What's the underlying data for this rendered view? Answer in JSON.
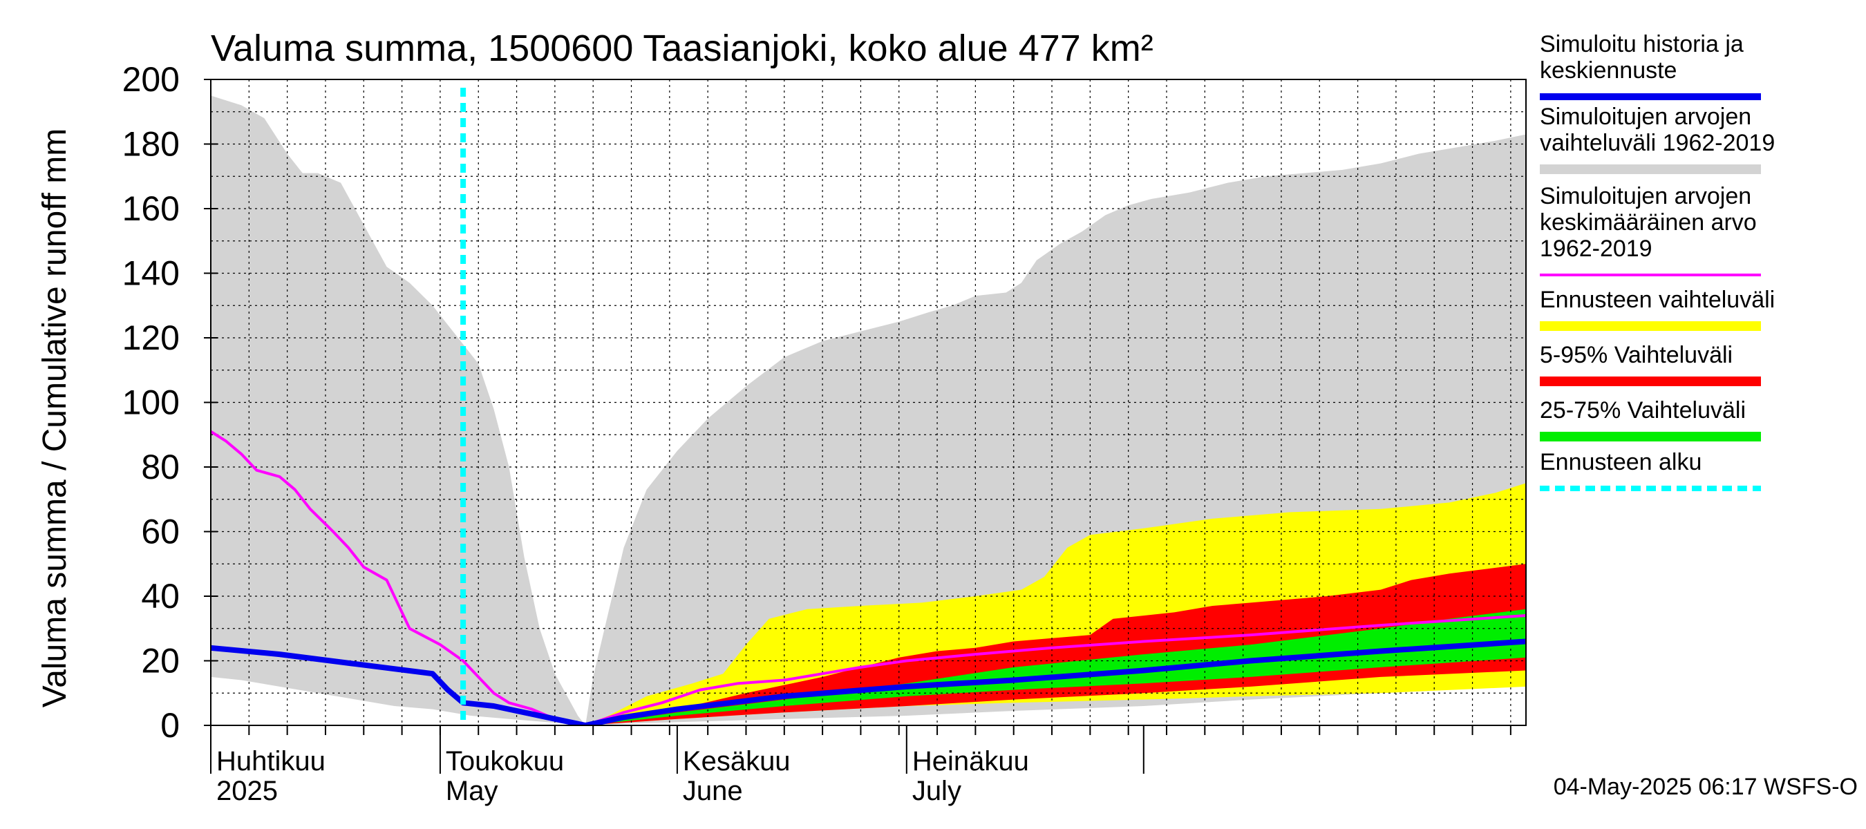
{
  "chart_data": {
    "type": "area",
    "title": "Valuma summa, 1500600 Taasianjoki, koko alue 477 km²",
    "ylabel": "Valuma summa / Cumulative runoff    mm",
    "ylim": [
      0,
      200
    ],
    "yticks": [
      0,
      20,
      40,
      60,
      80,
      100,
      120,
      140,
      160,
      180,
      200
    ],
    "xlim": [
      "2025-04-01",
      "2025-07-31"
    ],
    "grid": true,
    "legend_position": "right",
    "month_labels": [
      {
        "date": "2025-04-01",
        "line1": "Huhtikuu",
        "line2": "2025"
      },
      {
        "date": "2025-05-01",
        "line1": "Toukokuu",
        "line2": "May"
      },
      {
        "date": "2025-06-01",
        "line1": "Kesäkuu",
        "line2": "June"
      },
      {
        "date": "2025-07-01",
        "line1": "Heinäkuu",
        "line2": "July"
      }
    ],
    "forecast_start": "2025-05-04",
    "timestamp": "04-May-2025 06:17 WSFS-O",
    "colors": {
      "history": "#0000ee",
      "sim_range": "#d3d3d3",
      "sim_mean": "#ff00ff",
      "forecast_range": "#ffff00",
      "p5_95": "#ff0000",
      "p25_75": "#00ee00",
      "forecast_start": "#00ffff"
    },
    "legend": [
      {
        "key": "history",
        "label": "Simuloitu historia ja keskiennuste",
        "lines": [
          "Simuloitu historia ja",
          "keskiennuste"
        ]
      },
      {
        "key": "sim_range",
        "label": "Simuloitujen arvojen vaihteluväli 1962-2019",
        "lines": [
          "Simuloitujen arvojen",
          "vaihteluväli 1962-2019"
        ]
      },
      {
        "key": "sim_mean",
        "label": "Simuloitujen arvojen keskimääräinen arvo 1962-2019",
        "lines": [
          "Simuloitujen arvojen",
          "keskimääräinen arvo",
          "   1962-2019"
        ]
      },
      {
        "key": "forecast_range",
        "label": "Ennusteen vaihteluväli",
        "lines": [
          "Ennusteen vaihteluväli"
        ]
      },
      {
        "key": "p5_95",
        "label": "5-95% Vaihteluväli",
        "lines": [
          "5-95% Vaihteluväli"
        ]
      },
      {
        "key": "p25_75",
        "label": "25-75% Vaihteluväli",
        "lines": [
          "25-75% Vaihteluväli"
        ]
      },
      {
        "key": "forecast_start",
        "label": "Ennusteen alku",
        "lines": [
          "Ennusteen alku"
        ]
      }
    ],
    "series": {
      "sim_range": {
        "name": "Simuloitujen arvojen vaihteluväli 1962-2019",
        "upper": [
          [
            "2025-04-01",
            195
          ],
          [
            "2025-04-05",
            192
          ],
          [
            "2025-04-08",
            188
          ],
          [
            "2025-04-11",
            177
          ],
          [
            "2025-04-13",
            171
          ],
          [
            "2025-04-15",
            171
          ],
          [
            "2025-04-18",
            168
          ],
          [
            "2025-04-21",
            155
          ],
          [
            "2025-04-24",
            142
          ],
          [
            "2025-04-27",
            137
          ],
          [
            "2025-04-30",
            130
          ],
          [
            "2025-05-03",
            121
          ],
          [
            "2025-05-06",
            112
          ],
          [
            "2025-05-08",
            98
          ],
          [
            "2025-05-10",
            80
          ],
          [
            "2025-05-12",
            52
          ],
          [
            "2025-05-14",
            30
          ],
          [
            "2025-05-16",
            16
          ],
          [
            "2025-05-19",
            3
          ],
          [
            "2025-05-20",
            0
          ],
          [
            "2025-05-21",
            15
          ],
          [
            "2025-05-23",
            35
          ],
          [
            "2025-05-25",
            55
          ],
          [
            "2025-05-28",
            73
          ],
          [
            "2025-06-01",
            85
          ],
          [
            "2025-06-05",
            95
          ],
          [
            "2025-06-10",
            105
          ],
          [
            "2025-06-15",
            114
          ],
          [
            "2025-06-20",
            119
          ],
          [
            "2025-06-25",
            122
          ],
          [
            "2025-06-30",
            125
          ],
          [
            "2025-07-04",
            128
          ],
          [
            "2025-07-07",
            130
          ],
          [
            "2025-07-10",
            133
          ],
          [
            "2025-07-14",
            134
          ],
          [
            "2025-07-16",
            137
          ],
          [
            "2025-07-18",
            144
          ],
          [
            "2025-07-21",
            149
          ],
          [
            "2025-07-24",
            153
          ],
          [
            "2025-07-27",
            158
          ],
          [
            "2025-07-30",
            161
          ],
          [
            "2025-08-02",
            163
          ],
          [
            "2025-08-07",
            165
          ],
          [
            "2025-08-12",
            168
          ],
          [
            "2025-08-17",
            170
          ],
          [
            "2025-08-22",
            171
          ],
          [
            "2025-08-27",
            172
          ],
          [
            "2025-09-01",
            174
          ],
          [
            "2025-09-06",
            177
          ],
          [
            "2025-09-11",
            179
          ],
          [
            "2025-09-16",
            181
          ],
          [
            "2025-09-20",
            183
          ]
        ],
        "lower": [
          [
            "2025-04-01",
            15
          ],
          [
            "2025-04-05",
            14
          ],
          [
            "2025-04-10",
            12
          ],
          [
            "2025-04-15",
            10
          ],
          [
            "2025-04-20",
            8
          ],
          [
            "2025-04-25",
            6
          ],
          [
            "2025-04-30",
            5
          ],
          [
            "2025-05-05",
            3
          ],
          [
            "2025-05-10",
            2
          ],
          [
            "2025-05-15",
            1
          ],
          [
            "2025-05-20",
            0
          ],
          [
            "2025-05-25",
            0.5
          ],
          [
            "2025-06-01",
            1
          ],
          [
            "2025-06-15",
            2
          ],
          [
            "2025-07-01",
            3
          ],
          [
            "2025-07-15",
            4.5
          ],
          [
            "2025-08-01",
            6
          ],
          [
            "2025-08-15",
            8
          ],
          [
            "2025-09-01",
            10
          ],
          [
            "2025-09-20",
            13
          ]
        ]
      },
      "forecast_range": {
        "name": "Ennusteen vaihteluväli",
        "upper": [
          [
            "2025-05-20",
            0
          ],
          [
            "2025-05-23",
            3
          ],
          [
            "2025-05-28",
            9
          ],
          [
            "2025-06-03",
            13
          ],
          [
            "2025-06-07",
            16
          ],
          [
            "2025-06-10",
            25
          ],
          [
            "2025-06-13",
            33
          ],
          [
            "2025-06-18",
            36
          ],
          [
            "2025-06-25",
            37
          ],
          [
            "2025-07-03",
            38
          ],
          [
            "2025-07-10",
            40
          ],
          [
            "2025-07-16",
            42
          ],
          [
            "2025-07-19",
            46
          ],
          [
            "2025-07-22",
            55
          ],
          [
            "2025-07-25",
            59
          ],
          [
            "2025-08-01",
            61
          ],
          [
            "2025-08-10",
            64
          ],
          [
            "2025-08-20",
            66
          ],
          [
            "2025-09-01",
            67
          ],
          [
            "2025-09-10",
            69
          ],
          [
            "2025-09-16",
            72
          ],
          [
            "2025-09-20",
            75
          ]
        ],
        "lower": [
          [
            "2025-05-20",
            0
          ],
          [
            "2025-06-01",
            2
          ],
          [
            "2025-06-15",
            4
          ],
          [
            "2025-07-01",
            6
          ],
          [
            "2025-07-15",
            7
          ],
          [
            "2025-08-01",
            8
          ],
          [
            "2025-08-15",
            9
          ],
          [
            "2025-09-01",
            10
          ],
          [
            "2025-09-20",
            12
          ]
        ]
      },
      "p5_95": {
        "name": "5-95% Vaihteluväli",
        "upper": [
          [
            "2025-05-20",
            0
          ],
          [
            "2025-06-01",
            5
          ],
          [
            "2025-06-10",
            10
          ],
          [
            "2025-06-20",
            15
          ],
          [
            "2025-06-25",
            18
          ],
          [
            "2025-06-30",
            21
          ],
          [
            "2025-07-05",
            23
          ],
          [
            "2025-07-10",
            24
          ],
          [
            "2025-07-15",
            26
          ],
          [
            "2025-07-25",
            28
          ],
          [
            "2025-07-28",
            33
          ],
          [
            "2025-08-05",
            35
          ],
          [
            "2025-08-10",
            37
          ],
          [
            "2025-08-15",
            38
          ],
          [
            "2025-08-25",
            40
          ],
          [
            "2025-09-01",
            42
          ],
          [
            "2025-09-05",
            45
          ],
          [
            "2025-09-10",
            47
          ],
          [
            "2025-09-20",
            50
          ]
        ],
        "lower": [
          [
            "2025-05-20",
            0
          ],
          [
            "2025-06-01",
            2
          ],
          [
            "2025-06-15",
            4
          ],
          [
            "2025-07-01",
            6
          ],
          [
            "2025-07-15",
            8
          ],
          [
            "2025-08-01",
            10
          ],
          [
            "2025-08-15",
            12
          ],
          [
            "2025-09-01",
            15
          ],
          [
            "2025-09-20",
            17
          ]
        ]
      },
      "p25_75": {
        "name": "25-75% Vaihteluväli",
        "upper": [
          [
            "2025-05-20",
            0
          ],
          [
            "2025-06-01",
            4
          ],
          [
            "2025-06-15",
            8
          ],
          [
            "2025-07-01",
            13
          ],
          [
            "2025-07-15",
            18
          ],
          [
            "2025-08-01",
            22
          ],
          [
            "2025-08-15",
            25
          ],
          [
            "2025-09-01",
            30
          ],
          [
            "2025-09-10",
            33
          ],
          [
            "2025-09-20",
            36
          ]
        ],
        "lower": [
          [
            "2025-05-20",
            0
          ],
          [
            "2025-06-01",
            3
          ],
          [
            "2025-06-15",
            6
          ],
          [
            "2025-07-01",
            9
          ],
          [
            "2025-07-15",
            11
          ],
          [
            "2025-08-01",
            13
          ],
          [
            "2025-08-15",
            15
          ],
          [
            "2025-09-01",
            18
          ],
          [
            "2025-09-20",
            21
          ]
        ]
      },
      "sim_mean": {
        "name": "Simuloitujen arvojen keskimääräinen arvo 1962-2019",
        "values": [
          [
            "2025-04-01",
            91
          ],
          [
            "2025-04-03",
            88
          ],
          [
            "2025-04-05",
            84
          ],
          [
            "2025-04-07",
            79
          ],
          [
            "2025-04-10",
            77
          ],
          [
            "2025-04-12",
            73
          ],
          [
            "2025-04-14",
            67
          ],
          [
            "2025-04-17",
            60
          ],
          [
            "2025-04-19",
            55
          ],
          [
            "2025-04-21",
            49
          ],
          [
            "2025-04-24",
            45
          ],
          [
            "2025-04-27",
            30
          ],
          [
            "2025-05-01",
            25
          ],
          [
            "2025-05-04",
            20
          ],
          [
            "2025-05-06",
            15
          ],
          [
            "2025-05-08",
            10
          ],
          [
            "2025-05-10",
            7
          ],
          [
            "2025-05-13",
            5
          ],
          [
            "2025-05-15",
            3
          ],
          [
            "2025-05-17",
            1.5
          ],
          [
            "2025-05-20",
            0
          ],
          [
            "2025-05-25",
            4
          ],
          [
            "2025-05-30",
            7
          ],
          [
            "2025-06-04",
            11
          ],
          [
            "2025-06-09",
            13
          ],
          [
            "2025-06-15",
            14
          ],
          [
            "2025-06-25",
            18
          ],
          [
            "2025-07-01",
            20
          ],
          [
            "2025-07-10",
            22
          ],
          [
            "2025-07-20",
            24
          ],
          [
            "2025-08-01",
            26
          ],
          [
            "2025-08-15",
            28
          ],
          [
            "2025-09-01",
            31
          ],
          [
            "2025-09-20",
            34
          ]
        ]
      },
      "history": {
        "name": "Simuloitu historia ja keskiennuste",
        "values": [
          [
            "2025-04-01",
            24
          ],
          [
            "2025-04-10",
            22
          ],
          [
            "2025-04-20",
            19
          ],
          [
            "2025-04-30",
            16
          ],
          [
            "2025-05-02",
            11
          ],
          [
            "2025-05-04",
            7
          ],
          [
            "2025-05-08",
            6
          ],
          [
            "2025-05-12",
            4
          ],
          [
            "2025-05-16",
            2
          ],
          [
            "2025-05-20",
            0
          ],
          [
            "2025-05-25",
            2.5
          ],
          [
            "2025-06-01",
            5
          ],
          [
            "2025-06-15",
            9
          ],
          [
            "2025-07-01",
            12
          ],
          [
            "2025-07-15",
            14
          ],
          [
            "2025-08-01",
            17
          ],
          [
            "2025-08-15",
            20
          ],
          [
            "2025-09-01",
            23
          ],
          [
            "2025-09-20",
            26
          ]
        ]
      }
    }
  }
}
